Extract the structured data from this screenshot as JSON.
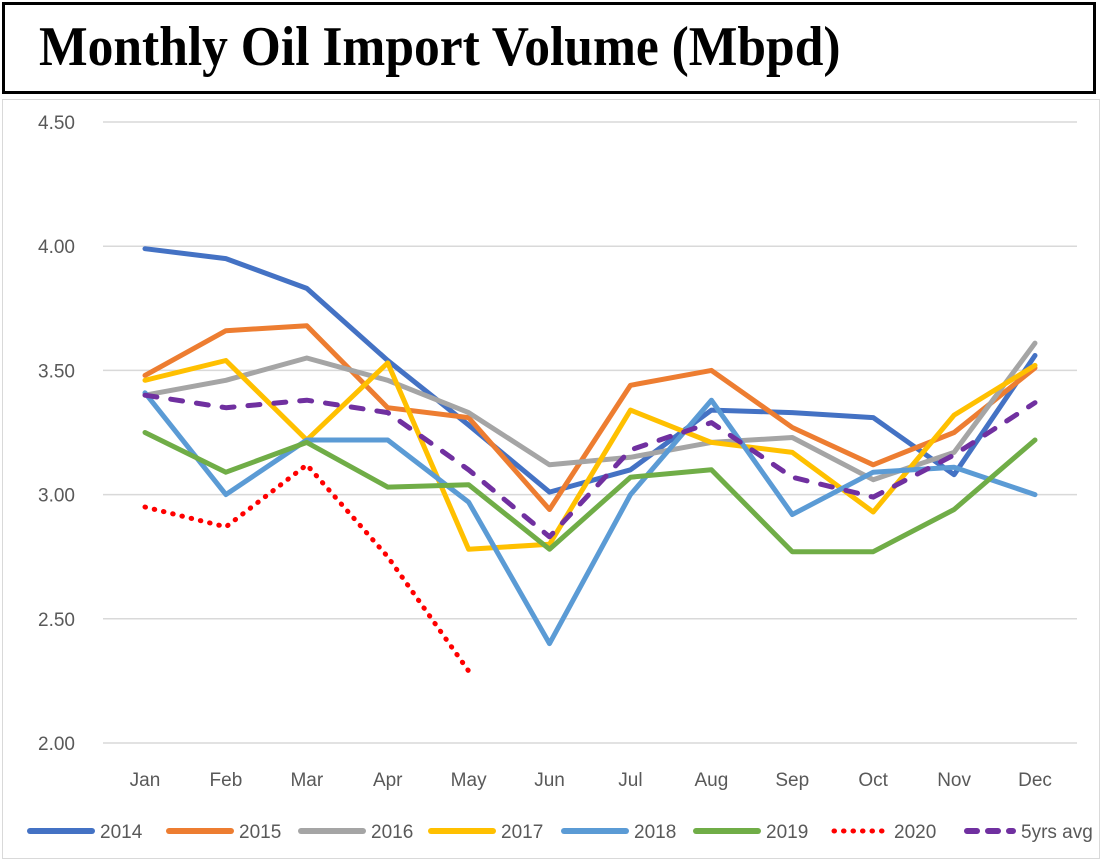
{
  "chart_data": {
    "type": "line",
    "title": "Monthly Oil Import Volume (Mbpd)",
    "xlabel": "",
    "ylabel": "",
    "categories": [
      "Jan",
      "Feb",
      "Mar",
      "Apr",
      "May",
      "Jun",
      "Jul",
      "Aug",
      "Sep",
      "Oct",
      "Nov",
      "Dec"
    ],
    "ylim": [
      2.0,
      4.5
    ],
    "yticks": [
      "2.00",
      "2.50",
      "3.00",
      "3.50",
      "4.00",
      "4.50"
    ],
    "ytick_values": [
      2.0,
      2.5,
      3.0,
      3.5,
      4.0,
      4.5
    ],
    "grid": true,
    "legend_position": "bottom",
    "series": [
      {
        "name": "2014",
        "color": "#4472c4",
        "style": "solid",
        "values": [
          3.99,
          3.95,
          3.83,
          3.54,
          3.28,
          3.01,
          3.1,
          3.34,
          3.33,
          3.31,
          3.08,
          3.56
        ]
      },
      {
        "name": "2015",
        "color": "#ed7d31",
        "style": "solid",
        "values": [
          3.48,
          3.66,
          3.68,
          3.35,
          3.31,
          2.94,
          3.44,
          3.5,
          3.27,
          3.12,
          3.25,
          3.51
        ]
      },
      {
        "name": "2016",
        "color": "#a5a5a5",
        "style": "solid",
        "values": [
          3.4,
          3.46,
          3.55,
          3.46,
          3.33,
          3.12,
          3.15,
          3.21,
          3.23,
          3.06,
          3.17,
          3.61
        ]
      },
      {
        "name": "2017",
        "color": "#ffc000",
        "style": "solid",
        "values": [
          3.46,
          3.54,
          3.22,
          3.53,
          2.78,
          2.8,
          3.34,
          3.21,
          3.17,
          2.93,
          3.32,
          3.52
        ]
      },
      {
        "name": "2018",
        "color": "#5b9bd5",
        "style": "solid",
        "values": [
          3.41,
          3.0,
          3.22,
          3.22,
          2.97,
          2.4,
          3.0,
          3.38,
          2.92,
          3.09,
          3.11,
          3.0
        ]
      },
      {
        "name": "2019",
        "color": "#70ad47",
        "style": "solid",
        "values": [
          3.25,
          3.09,
          3.21,
          3.03,
          3.04,
          2.78,
          3.07,
          3.1,
          2.77,
          2.77,
          2.94,
          3.22
        ]
      },
      {
        "name": "2020",
        "color": "#ff0000",
        "style": "dotted",
        "values": [
          2.95,
          2.87,
          3.12,
          2.75,
          2.29,
          null,
          null,
          null,
          null,
          null,
          null,
          null
        ]
      },
      {
        "name": "5yrs avg",
        "color": "#7030a0",
        "style": "dashed",
        "values": [
          3.4,
          3.35,
          3.38,
          3.33,
          3.1,
          2.83,
          3.18,
          3.29,
          3.07,
          2.99,
          3.16,
          3.37
        ]
      }
    ]
  }
}
